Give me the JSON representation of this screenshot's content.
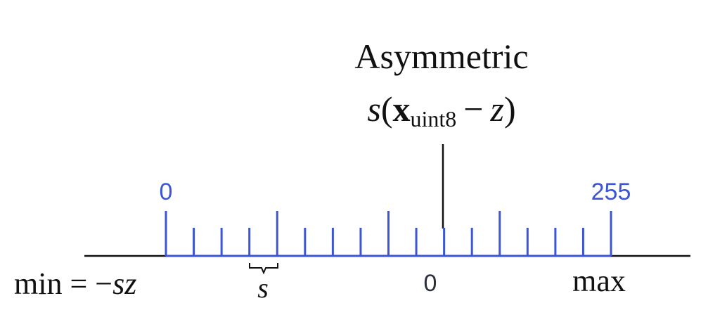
{
  "title": {
    "line1": "Asymmetric",
    "formula": {
      "fn": "s",
      "open": "(",
      "var": "x",
      "sub": "uint8",
      "op": "−",
      "z": "z",
      "close": ")"
    }
  },
  "quantized_labels": {
    "start": "0",
    "end": "255"
  },
  "real_labels": {
    "min": {
      "prefix": "min",
      "equals": "=",
      "minus": "−",
      "s": "s",
      "z": "z"
    },
    "step": "s",
    "zero": "0",
    "max": "max"
  },
  "scale": {
    "quant_min": 0,
    "quant_max": 255,
    "tick_count": 17,
    "major_every": 4,
    "marked_value_tick_index": 10
  },
  "colors": {
    "quantized": "#3b55d4",
    "real_axis": "#111111",
    "text": "#111111",
    "zero_label": "#2a2f3a"
  }
}
